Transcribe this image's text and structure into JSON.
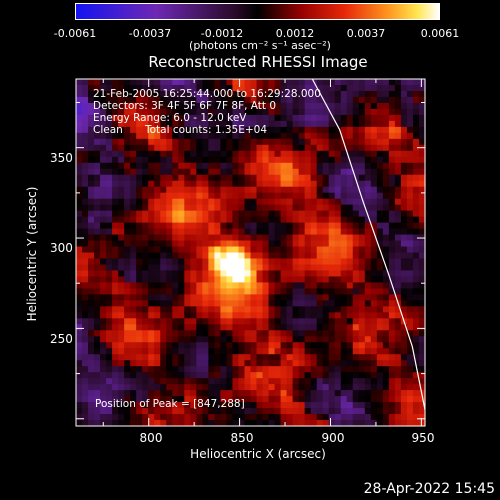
{
  "chart_data": {
    "type": "heatmap",
    "title": "Reconstructed RHESSI Image",
    "xlabel": "Heliocentric X (arcsec)",
    "ylabel": "Heliocentric Y (arcsec)",
    "xlim": [
      760,
      952
    ],
    "ylim": [
      196,
      388
    ],
    "x_ticks": [
      800,
      850,
      900,
      950
    ],
    "y_ticks": [
      250,
      300,
      350
    ],
    "colorbar": {
      "range": [
        -0.0061,
        0.0061
      ],
      "tick_labels": [
        "-0.0061",
        "-0.0037",
        "-0.0012",
        "0.0012",
        "0.0037",
        "0.0061"
      ],
      "unit_label": "(photons cm⁻² s⁻¹ asec⁻²)"
    },
    "annotations": {
      "time_range": "21-Feb-2005 16:25:44.000 to 16:29:28.000",
      "detectors": "Detectors: 3F 4F 5F 6F 7F 8F, Att 0",
      "energy": "Energy Range: 6.0 - 12.0 keV",
      "clean": "Clean",
      "counts": "Total counts: 1.35E+04",
      "peak": "Position of Peak = [847,288]"
    },
    "peak": {
      "x": 847,
      "y": 288
    },
    "limb_curve": [
      [
        890,
        388
      ],
      [
        905,
        360
      ],
      [
        918,
        320
      ],
      [
        932,
        280
      ],
      [
        945,
        240
      ],
      [
        952,
        205
      ]
    ]
  },
  "timestamp": "28-Apr-2022 15:45",
  "colors": {
    "axis": "#ffffff",
    "background": "#000000"
  }
}
